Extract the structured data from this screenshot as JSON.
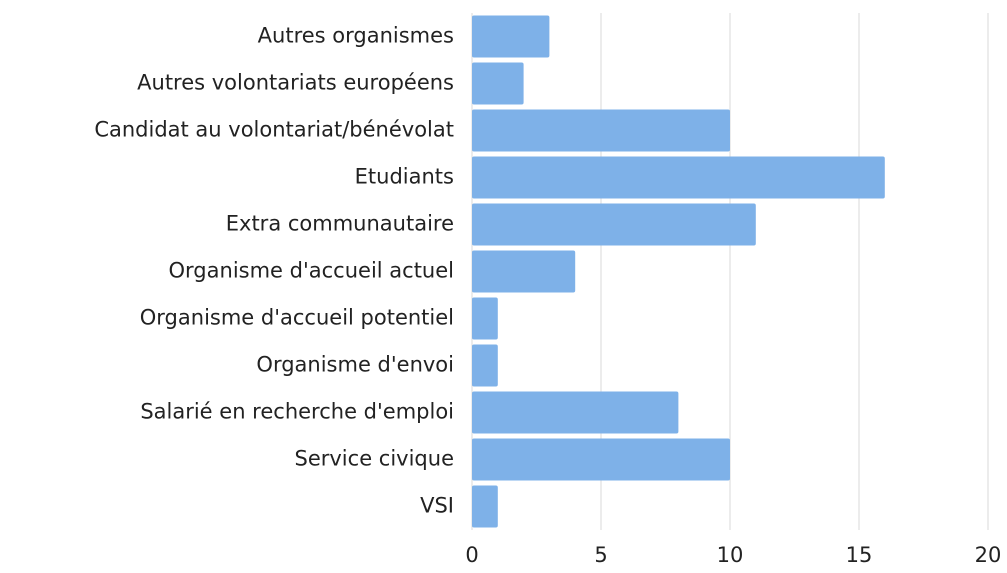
{
  "chart_data": {
    "type": "bar",
    "orientation": "horizontal",
    "categories": [
      "Autres organismes",
      "Autres volontariats européens",
      "Candidat au volontariat/bénévolat",
      "Etudiants",
      "Extra communautaire",
      "Organisme d'accueil actuel",
      "Organisme d'accueil potentiel",
      "Organisme d'envoi",
      "Salarié en recherche d'emploi",
      "Service civique",
      "VSI"
    ],
    "values": [
      3,
      2,
      10,
      16,
      11,
      4,
      1,
      1,
      8,
      10,
      1
    ],
    "color": "#7eb1e8",
    "xlim": [
      0,
      20
    ],
    "xticks": [
      0,
      5,
      10,
      15,
      20
    ],
    "grid": true
  }
}
